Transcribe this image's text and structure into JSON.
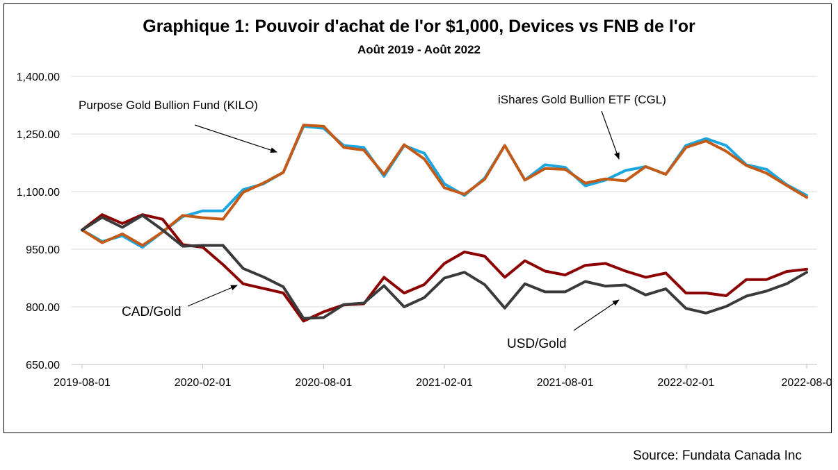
{
  "chart_data": {
    "type": "line",
    "title": "Graphique 1: Pouvoir d'achat de l'or $1,000, Devices vs FNB de l'or",
    "subtitle": "Août 2019 - Août 2022",
    "xlabel": "",
    "ylabel": "",
    "ylim": [
      650,
      1400
    ],
    "yticks": [
      1400,
      1250,
      1100,
      950,
      800,
      650
    ],
    "ytick_labels": [
      "1,400.00",
      "1,250.00",
      "1,100.00",
      "950.00",
      "800.00",
      "650.00"
    ],
    "x_tick_labels": [
      "2019-08-01",
      "2020-02-01",
      "2020-08-01",
      "2021-02-01",
      "2021-08-01",
      "2022-02-01",
      "2022-08-0"
    ],
    "x_tick_indices": [
      0,
      6,
      12,
      18,
      24,
      30,
      36
    ],
    "grid": "horizontal",
    "categories": [
      "2019-08",
      "2019-09",
      "2019-10",
      "2019-11",
      "2019-12",
      "2020-01",
      "2020-02",
      "2020-03",
      "2020-04",
      "2020-05",
      "2020-06",
      "2020-07",
      "2020-08",
      "2020-09",
      "2020-10",
      "2020-11",
      "2020-12",
      "2021-01",
      "2021-02",
      "2021-03",
      "2021-04",
      "2021-05",
      "2021-06",
      "2021-07",
      "2021-08",
      "2021-09",
      "2021-10",
      "2021-11",
      "2021-12",
      "2022-01",
      "2022-02",
      "2022-03",
      "2022-04",
      "2022-05",
      "2022-06",
      "2022-07",
      "2022-08"
    ],
    "series": [
      {
        "name": "iShares Gold Bullion ETF (CGL)",
        "color": "#1aa7e0",
        "values": [
          1000,
          970,
          985,
          955,
          995,
          1035,
          1050,
          1050,
          1105,
          1120,
          1150,
          1270,
          1265,
          1220,
          1215,
          1140,
          1220,
          1200,
          1120,
          1090,
          1135,
          1220,
          1130,
          1170,
          1163,
          1115,
          1130,
          1155,
          1165,
          1145,
          1220,
          1238,
          1220,
          1170,
          1158,
          1118,
          1090
        ]
      },
      {
        "name": "Purpose Gold Bullion Fund (KILO)",
        "color": "#c45a17",
        "values": [
          1000,
          967,
          990,
          960,
          995,
          1038,
          1032,
          1028,
          1098,
          1122,
          1150,
          1273,
          1270,
          1215,
          1208,
          1145,
          1222,
          1185,
          1110,
          1093,
          1132,
          1220,
          1130,
          1160,
          1158,
          1122,
          1133,
          1128,
          1165,
          1145,
          1215,
          1232,
          1205,
          1168,
          1148,
          1116,
          1085
        ]
      },
      {
        "name": "CAD/Gold",
        "color": "#8b0000",
        "values": [
          1000,
          1040,
          1017,
          1040,
          1028,
          962,
          955,
          910,
          860,
          848,
          836,
          763,
          787,
          805,
          808,
          877,
          836,
          858,
          913,
          943,
          932,
          877,
          920,
          893,
          883,
          908,
          913,
          893,
          877,
          888,
          836,
          836,
          829,
          871,
          871,
          892,
          898
        ]
      },
      {
        "name": "USD/Gold",
        "color": "#3a3a3a",
        "values": [
          1000,
          1033,
          1007,
          1038,
          1000,
          958,
          960,
          960,
          900,
          878,
          852,
          770,
          772,
          806,
          810,
          855,
          800,
          824,
          875,
          890,
          858,
          797,
          860,
          839,
          839,
          866,
          854,
          857,
          831,
          847,
          796,
          784,
          801,
          828,
          841,
          860,
          890
        ]
      }
    ],
    "annotations": [
      {
        "text": "Purpose Gold Bullion Fund (KILO)",
        "points_to": "KILO"
      },
      {
        "text": "iShares Gold Bullion ETF (CGL)",
        "points_to": "CGL"
      },
      {
        "text": "CAD/Gold",
        "points_to": "CAD/Gold"
      },
      {
        "text": "USD/Gold",
        "points_to": "USD/Gold"
      }
    ]
  },
  "source": "Source: Fundata Canada Inc"
}
